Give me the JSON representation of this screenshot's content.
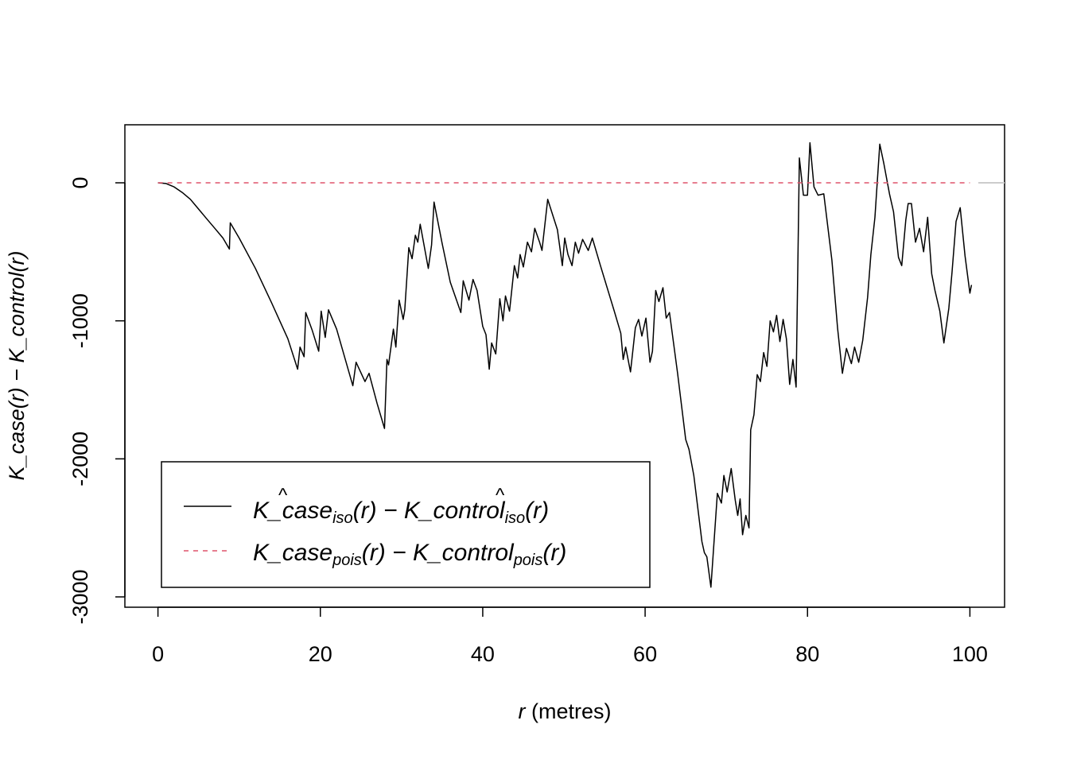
{
  "chart_data": {
    "type": "line",
    "xlabel": {
      "var": "r",
      "unit": " (metres)"
    },
    "ylabel": {
      "parts": [
        "K_case",
        "(",
        "r",
        ")",
        " − ",
        "K_control",
        "(",
        "r",
        ")"
      ]
    },
    "xlim": [
      0,
      100
    ],
    "ylim": [
      -3000,
      0
    ],
    "xticks": [
      0,
      20,
      40,
      60,
      80,
      100
    ],
    "yticks": [
      0,
      -1000,
      -2000,
      -3000
    ],
    "legend": {
      "placement": "bottom-left",
      "entries": [
        {
          "name": "K_case_iso(r) − K_control_iso(r)",
          "style": "solid",
          "color": "#000000",
          "text": {
            "a": "K_c",
            "hat": "a",
            "b": "se",
            "sub1": "iso",
            "mid": "(r) − K_co",
            "hat2": "n",
            "c": "trol",
            "sub2": "iso",
            "end": "(r)"
          }
        },
        {
          "name": "K_case_pois(r) − K_control_pois(r)",
          "style": "dashed",
          "color": "#DF536B",
          "text": {
            "a": "K_case",
            "sub1": "pois",
            "mid": "(r) − K_control",
            "sub2": "pois",
            "end": "(r)"
          }
        }
      ]
    },
    "series": [
      {
        "name": "iso",
        "color": "#000000",
        "style": "solid",
        "points": [
          [
            0,
            0
          ],
          [
            1,
            -5
          ],
          [
            2,
            -30
          ],
          [
            3,
            -70
          ],
          [
            4,
            -120
          ],
          [
            5,
            -190
          ],
          [
            6,
            -260
          ],
          [
            7,
            -330
          ],
          [
            8,
            -400
          ],
          [
            8.8,
            -480
          ],
          [
            8.9,
            -290
          ],
          [
            10,
            -400
          ],
          [
            12,
            -620
          ],
          [
            14,
            -870
          ],
          [
            16,
            -1130
          ],
          [
            17.2,
            -1350
          ],
          [
            17.5,
            -1190
          ],
          [
            18,
            -1260
          ],
          [
            18.2,
            -940
          ],
          [
            19,
            -1070
          ],
          [
            19.8,
            -1220
          ],
          [
            20.1,
            -930
          ],
          [
            20.6,
            -1120
          ],
          [
            21,
            -920
          ],
          [
            22,
            -1060
          ],
          [
            24,
            -1470
          ],
          [
            24.4,
            -1300
          ],
          [
            25.5,
            -1440
          ],
          [
            26,
            -1380
          ],
          [
            27,
            -1600
          ],
          [
            27.9,
            -1780
          ],
          [
            28.2,
            -1280
          ],
          [
            28.4,
            -1320
          ],
          [
            29,
            -1060
          ],
          [
            29.3,
            -1190
          ],
          [
            29.7,
            -850
          ],
          [
            30.2,
            -990
          ],
          [
            30.4,
            -920
          ],
          [
            30.9,
            -470
          ],
          [
            31.3,
            -550
          ],
          [
            31.7,
            -380
          ],
          [
            32,
            -430
          ],
          [
            32.3,
            -300
          ],
          [
            33.3,
            -620
          ],
          [
            33.7,
            -450
          ],
          [
            34,
            -140
          ],
          [
            35,
            -440
          ],
          [
            36,
            -720
          ],
          [
            37.3,
            -940
          ],
          [
            37.6,
            -710
          ],
          [
            38.3,
            -850
          ],
          [
            38.8,
            -700
          ],
          [
            39.3,
            -780
          ],
          [
            40,
            -1040
          ],
          [
            40.4,
            -1100
          ],
          [
            40.8,
            -1350
          ],
          [
            41.1,
            -1160
          ],
          [
            41.6,
            -1240
          ],
          [
            42.1,
            -840
          ],
          [
            42.5,
            -1000
          ],
          [
            42.8,
            -820
          ],
          [
            43.3,
            -930
          ],
          [
            43.9,
            -600
          ],
          [
            44.3,
            -690
          ],
          [
            44.6,
            -520
          ],
          [
            45,
            -610
          ],
          [
            45.5,
            -430
          ],
          [
            46,
            -500
          ],
          [
            46.4,
            -330
          ],
          [
            47,
            -430
          ],
          [
            47.3,
            -490
          ],
          [
            48,
            -120
          ],
          [
            49.2,
            -340
          ],
          [
            49.8,
            -600
          ],
          [
            50.1,
            -400
          ],
          [
            50.5,
            -520
          ],
          [
            51,
            -600
          ],
          [
            51.4,
            -430
          ],
          [
            51.8,
            -510
          ],
          [
            52.3,
            -410
          ],
          [
            53,
            -490
          ],
          [
            53.5,
            -400
          ],
          [
            54.5,
            -600
          ],
          [
            56.2,
            -930
          ],
          [
            57,
            -1090
          ],
          [
            57.3,
            -1280
          ],
          [
            57.6,
            -1190
          ],
          [
            58.2,
            -1370
          ],
          [
            58.8,
            -1050
          ],
          [
            59.2,
            -990
          ],
          [
            59.6,
            -1110
          ],
          [
            60.1,
            -980
          ],
          [
            60.6,
            -1300
          ],
          [
            60.9,
            -1220
          ],
          [
            61.3,
            -780
          ],
          [
            61.7,
            -860
          ],
          [
            62.2,
            -760
          ],
          [
            62.6,
            -980
          ],
          [
            63,
            -940
          ],
          [
            64,
            -1380
          ],
          [
            65,
            -1860
          ],
          [
            65.4,
            -1930
          ],
          [
            66,
            -2120
          ],
          [
            67,
            -2600
          ],
          [
            67.3,
            -2680
          ],
          [
            67.6,
            -2710
          ],
          [
            68.1,
            -2930
          ],
          [
            68.9,
            -2250
          ],
          [
            69.4,
            -2320
          ],
          [
            69.7,
            -2120
          ],
          [
            70.1,
            -2240
          ],
          [
            70.6,
            -2070
          ],
          [
            71.1,
            -2300
          ],
          [
            71.4,
            -2410
          ],
          [
            71.7,
            -2290
          ],
          [
            72,
            -2550
          ],
          [
            72.4,
            -2410
          ],
          [
            72.8,
            -2500
          ],
          [
            73,
            -1790
          ],
          [
            73.4,
            -1680
          ],
          [
            73.8,
            -1390
          ],
          [
            74.2,
            -1440
          ],
          [
            74.6,
            -1230
          ],
          [
            75,
            -1330
          ],
          [
            75.4,
            -1000
          ],
          [
            75.8,
            -1080
          ],
          [
            76.2,
            -960
          ],
          [
            76.6,
            -1150
          ],
          [
            77,
            -990
          ],
          [
            77.4,
            -1130
          ],
          [
            77.8,
            -1460
          ],
          [
            78.2,
            -1280
          ],
          [
            78.6,
            -1480
          ],
          [
            79,
            180
          ],
          [
            79.5,
            -90
          ],
          [
            80,
            -90
          ],
          [
            80.3,
            290
          ],
          [
            80.8,
            -30
          ],
          [
            81.3,
            -90
          ],
          [
            82,
            -80
          ],
          [
            83,
            -560
          ],
          [
            83.7,
            -1050
          ],
          [
            84.3,
            -1380
          ],
          [
            84.8,
            -1200
          ],
          [
            85.4,
            -1310
          ],
          [
            85.8,
            -1190
          ],
          [
            86.3,
            -1300
          ],
          [
            86.8,
            -1140
          ],
          [
            87.4,
            -830
          ],
          [
            87.8,
            -520
          ],
          [
            88.3,
            -250
          ],
          [
            88.9,
            280
          ],
          [
            89.4,
            140
          ],
          [
            90.1,
            -80
          ],
          [
            90.6,
            -210
          ],
          [
            91.2,
            -540
          ],
          [
            91.6,
            -600
          ],
          [
            92.1,
            -270
          ],
          [
            92.4,
            -150
          ],
          [
            92.8,
            -150
          ],
          [
            93.3,
            -430
          ],
          [
            93.8,
            -330
          ],
          [
            94.3,
            -500
          ],
          [
            94.8,
            -250
          ],
          [
            95.3,
            -660
          ],
          [
            95.7,
            -780
          ],
          [
            96.3,
            -930
          ],
          [
            96.8,
            -1160
          ],
          [
            97.4,
            -910
          ],
          [
            97.8,
            -650
          ],
          [
            98.3,
            -280
          ],
          [
            98.8,
            -180
          ],
          [
            99.4,
            -530
          ],
          [
            100,
            -800
          ],
          [
            100.2,
            -740
          ]
        ]
      },
      {
        "name": "pois",
        "color": "#DF536B",
        "style": "dashed",
        "points": [
          [
            0,
            0
          ],
          [
            100,
            0
          ]
        ]
      }
    ]
  }
}
